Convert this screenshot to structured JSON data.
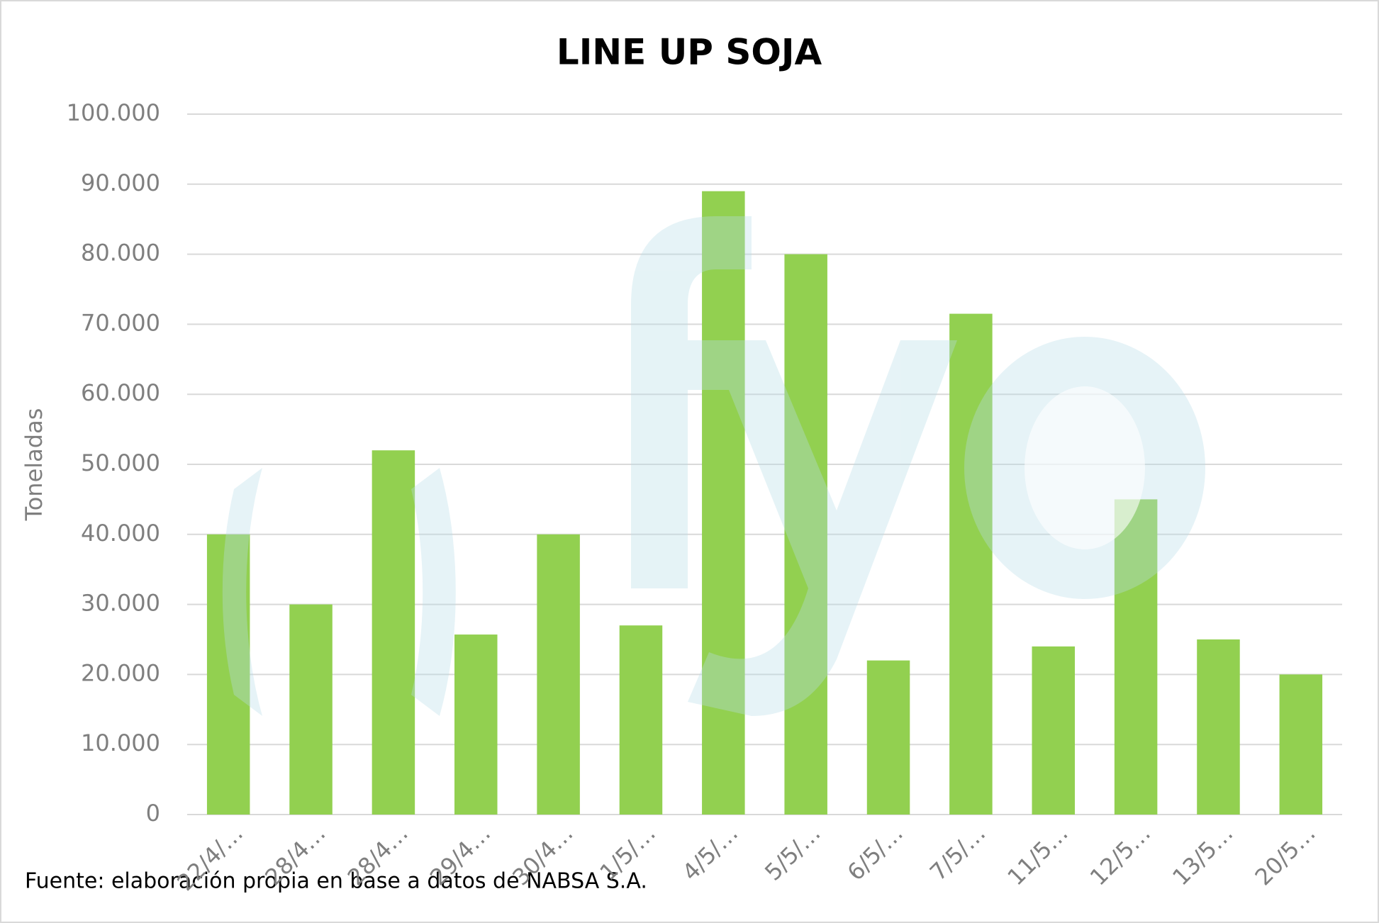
{
  "chart_data": {
    "type": "bar",
    "title": "LINE UP SOJA",
    "y_label": "Toneladas",
    "source": "Fuente: elaboración propia en base a datos de NABSA S.A.",
    "categories": [
      "22/4/…",
      "28/4…",
      "28/4…",
      "29/4…",
      "30/4…",
      "1/5/…",
      "4/5/…",
      "5/5/…",
      "6/5/…",
      "7/5/…",
      "11/5…",
      "12/5…",
      "13/5…",
      "20/5…"
    ],
    "values": [
      40000,
      30000,
      52000,
      25700,
      40000,
      27000,
      89000,
      80000,
      22000,
      71500,
      24000,
      45000,
      25000,
      20000
    ],
    "color": "#92d050",
    "ylim": [
      0,
      100000
    ],
    "yticks": [
      0,
      {
        "value": 10000,
        "label": "10.000"
      },
      {
        "value": 20000,
        "label": "20.000"
      },
      {
        "value": 30000,
        "label": "30.000"
      },
      {
        "value": 40000,
        "label": "40.000"
      },
      {
        "value": 50000,
        "label": "50.000"
      },
      {
        "value": 60000,
        "label": "60.000"
      },
      {
        "value": 70000,
        "label": "70.000"
      },
      {
        "value": 80000,
        "label": "80.000"
      },
      {
        "value": 90000,
        "label": "90.000"
      },
      {
        "value": 100000,
        "label": "100.000"
      }
    ],
    "grid": true
  }
}
